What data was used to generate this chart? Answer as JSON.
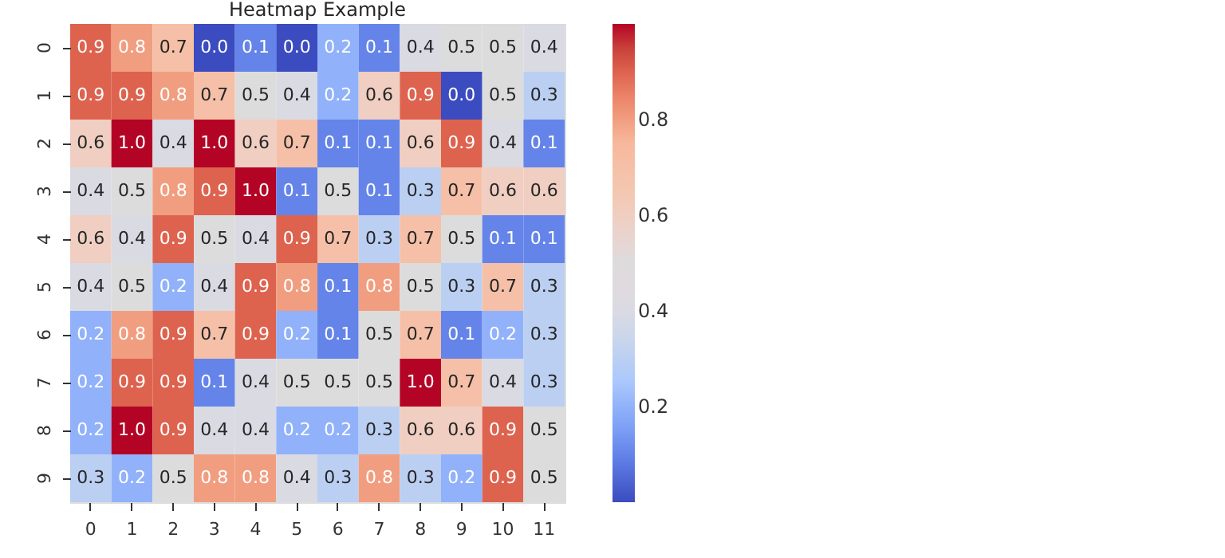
{
  "chart_data": {
    "type": "heatmap",
    "title": "Heatmap Example",
    "categories": [
      "0",
      "1",
      "2",
      "3",
      "4",
      "5",
      "6",
      "7",
      "8",
      "9",
      "10",
      "11"
    ],
    "y_categories": [
      "0",
      "1",
      "2",
      "3",
      "4",
      "5",
      "6",
      "7",
      "8",
      "9"
    ],
    "cells": [
      [
        0.9,
        0.8,
        0.7,
        0.0,
        0.1,
        0.0,
        0.2,
        0.1,
        0.4,
        0.5,
        0.5,
        0.4
      ],
      [
        0.9,
        0.9,
        0.8,
        0.7,
        0.5,
        0.4,
        0.2,
        0.6,
        0.9,
        0.0,
        0.5,
        0.3
      ],
      [
        0.6,
        1.0,
        0.4,
        1.0,
        0.6,
        0.7,
        0.1,
        0.1,
        0.6,
        0.9,
        0.4,
        0.1
      ],
      [
        0.4,
        0.5,
        0.8,
        0.9,
        1.0,
        0.1,
        0.5,
        0.1,
        0.3,
        0.7,
        0.6,
        0.6
      ],
      [
        0.6,
        0.4,
        0.9,
        0.5,
        0.4,
        0.9,
        0.7,
        0.3,
        0.7,
        0.5,
        0.1,
        0.1
      ],
      [
        0.4,
        0.5,
        0.2,
        0.4,
        0.9,
        0.8,
        0.1,
        0.8,
        0.5,
        0.3,
        0.7,
        0.3
      ],
      [
        0.2,
        0.8,
        0.9,
        0.7,
        0.9,
        0.2,
        0.1,
        0.5,
        0.7,
        0.1,
        0.2,
        0.3
      ],
      [
        0.2,
        0.9,
        0.9,
        0.1,
        0.4,
        0.5,
        0.5,
        0.5,
        1.0,
        0.7,
        0.4,
        0.3
      ],
      [
        0.2,
        1.0,
        0.9,
        0.4,
        0.4,
        0.2,
        0.2,
        0.3,
        0.6,
        0.6,
        0.9,
        0.5
      ],
      [
        0.3,
        0.2,
        0.5,
        0.8,
        0.8,
        0.4,
        0.3,
        0.8,
        0.3,
        0.2,
        0.9,
        0.5
      ]
    ],
    "cell_labels": [
      [
        "0.9",
        "0.8",
        "0.7",
        "0.0",
        "0.1",
        "0.0",
        "0.2",
        "0.1",
        "0.4",
        "0.5",
        "0.5",
        "0.4"
      ],
      [
        "0.9",
        "0.9",
        "0.8",
        "0.7",
        "0.5",
        "0.4",
        "0.2",
        "0.6",
        "0.9",
        "0.0",
        "0.5",
        "0.3"
      ],
      [
        "0.6",
        "1.0",
        "0.4",
        "1.0",
        "0.6",
        "0.7",
        "0.1",
        "0.1",
        "0.6",
        "0.9",
        "0.4",
        "0.1"
      ],
      [
        "0.4",
        "0.5",
        "0.8",
        "0.9",
        "1.0",
        "0.1",
        "0.5",
        "0.1",
        "0.3",
        "0.7",
        "0.6",
        "0.6"
      ],
      [
        "0.6",
        "0.4",
        "0.9",
        "0.5",
        "0.4",
        "0.9",
        "0.7",
        "0.3",
        "0.7",
        "0.5",
        "0.1",
        "0.1"
      ],
      [
        "0.4",
        "0.5",
        "0.2",
        "0.4",
        "0.9",
        "0.8",
        "0.1",
        "0.8",
        "0.5",
        "0.3",
        "0.7",
        "0.3"
      ],
      [
        "0.2",
        "0.8",
        "0.9",
        "0.7",
        "0.9",
        "0.2",
        "0.1",
        "0.5",
        "0.7",
        "0.1",
        "0.2",
        "0.3"
      ],
      [
        "0.2",
        "0.9",
        "0.9",
        "0.1",
        "0.4",
        "0.5",
        "0.5",
        "0.5",
        "1.0",
        "0.7",
        "0.4",
        "0.3"
      ],
      [
        "0.2",
        "1.0",
        "0.9",
        "0.4",
        "0.4",
        "0.2",
        "0.2",
        "0.3",
        "0.6",
        "0.6",
        "0.9",
        "0.5"
      ],
      [
        "0.3",
        "0.2",
        "0.5",
        "0.8",
        "0.8",
        "0.4",
        "0.3",
        "0.8",
        "0.3",
        "0.2",
        "0.9",
        "0.5"
      ]
    ],
    "clim": [
      0.0,
      1.0
    ],
    "cticks": [
      0.2,
      0.4,
      0.6,
      0.8
    ]
  }
}
